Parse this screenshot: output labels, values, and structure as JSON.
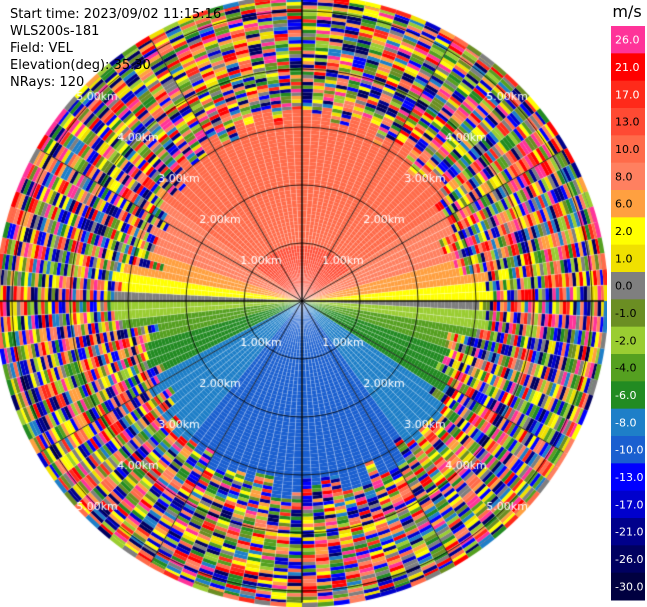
{
  "info": {
    "start_time": "Start time: 2023/09/02 11:15:16",
    "instrument": "WLS200s-181",
    "field": "Field: VEL",
    "elevation": "Elevation(deg): 35.30",
    "nrays": "NRays: 120"
  },
  "chart_data": {
    "type": "heatmap",
    "projection": "polar-ppi",
    "field": "VEL",
    "nrays": 120,
    "elevation_deg": 35.3,
    "range_rings_km": [
      1.0,
      2.0,
      3.0,
      4.0,
      5.0
    ],
    "range_labels": [
      "1.00km",
      "2.00km",
      "3.00km",
      "4.00km",
      "5.00km"
    ],
    "azimuth_spokes_deg": [
      0,
      30,
      60,
      90,
      120,
      150,
      180,
      210,
      240,
      270,
      300,
      330
    ],
    "max_range_km": 5.3,
    "colorbar": {
      "unit": "m/s",
      "tick_labels": [
        "26.0",
        "21.0",
        "17.0",
        "13.0",
        "10.0",
        "8.0",
        "6.0",
        "2.0",
        "1.0",
        "0.0",
        "-1.0",
        "-2.0",
        "-4.0",
        "-6.0",
        "-8.0",
        "-10.0",
        "-13.0",
        "-17.0",
        "-21.0",
        "-26.0",
        "-30.0"
      ],
      "colors": [
        "#ff3399",
        "#ff0000",
        "#ff2a1a",
        "#ff4a33",
        "#ff6b4a",
        "#ff8060",
        "#ffa040",
        "#ffff00",
        "#f0e000",
        "#7f7f7f",
        "#6b8e23",
        "#9acd32",
        "#55a020",
        "#228b22",
        "#1e7fc8",
        "#1a5fd0",
        "#0000ff",
        "#0000cd",
        "#00008b",
        "#000060",
        "#000040"
      ]
    }
  }
}
